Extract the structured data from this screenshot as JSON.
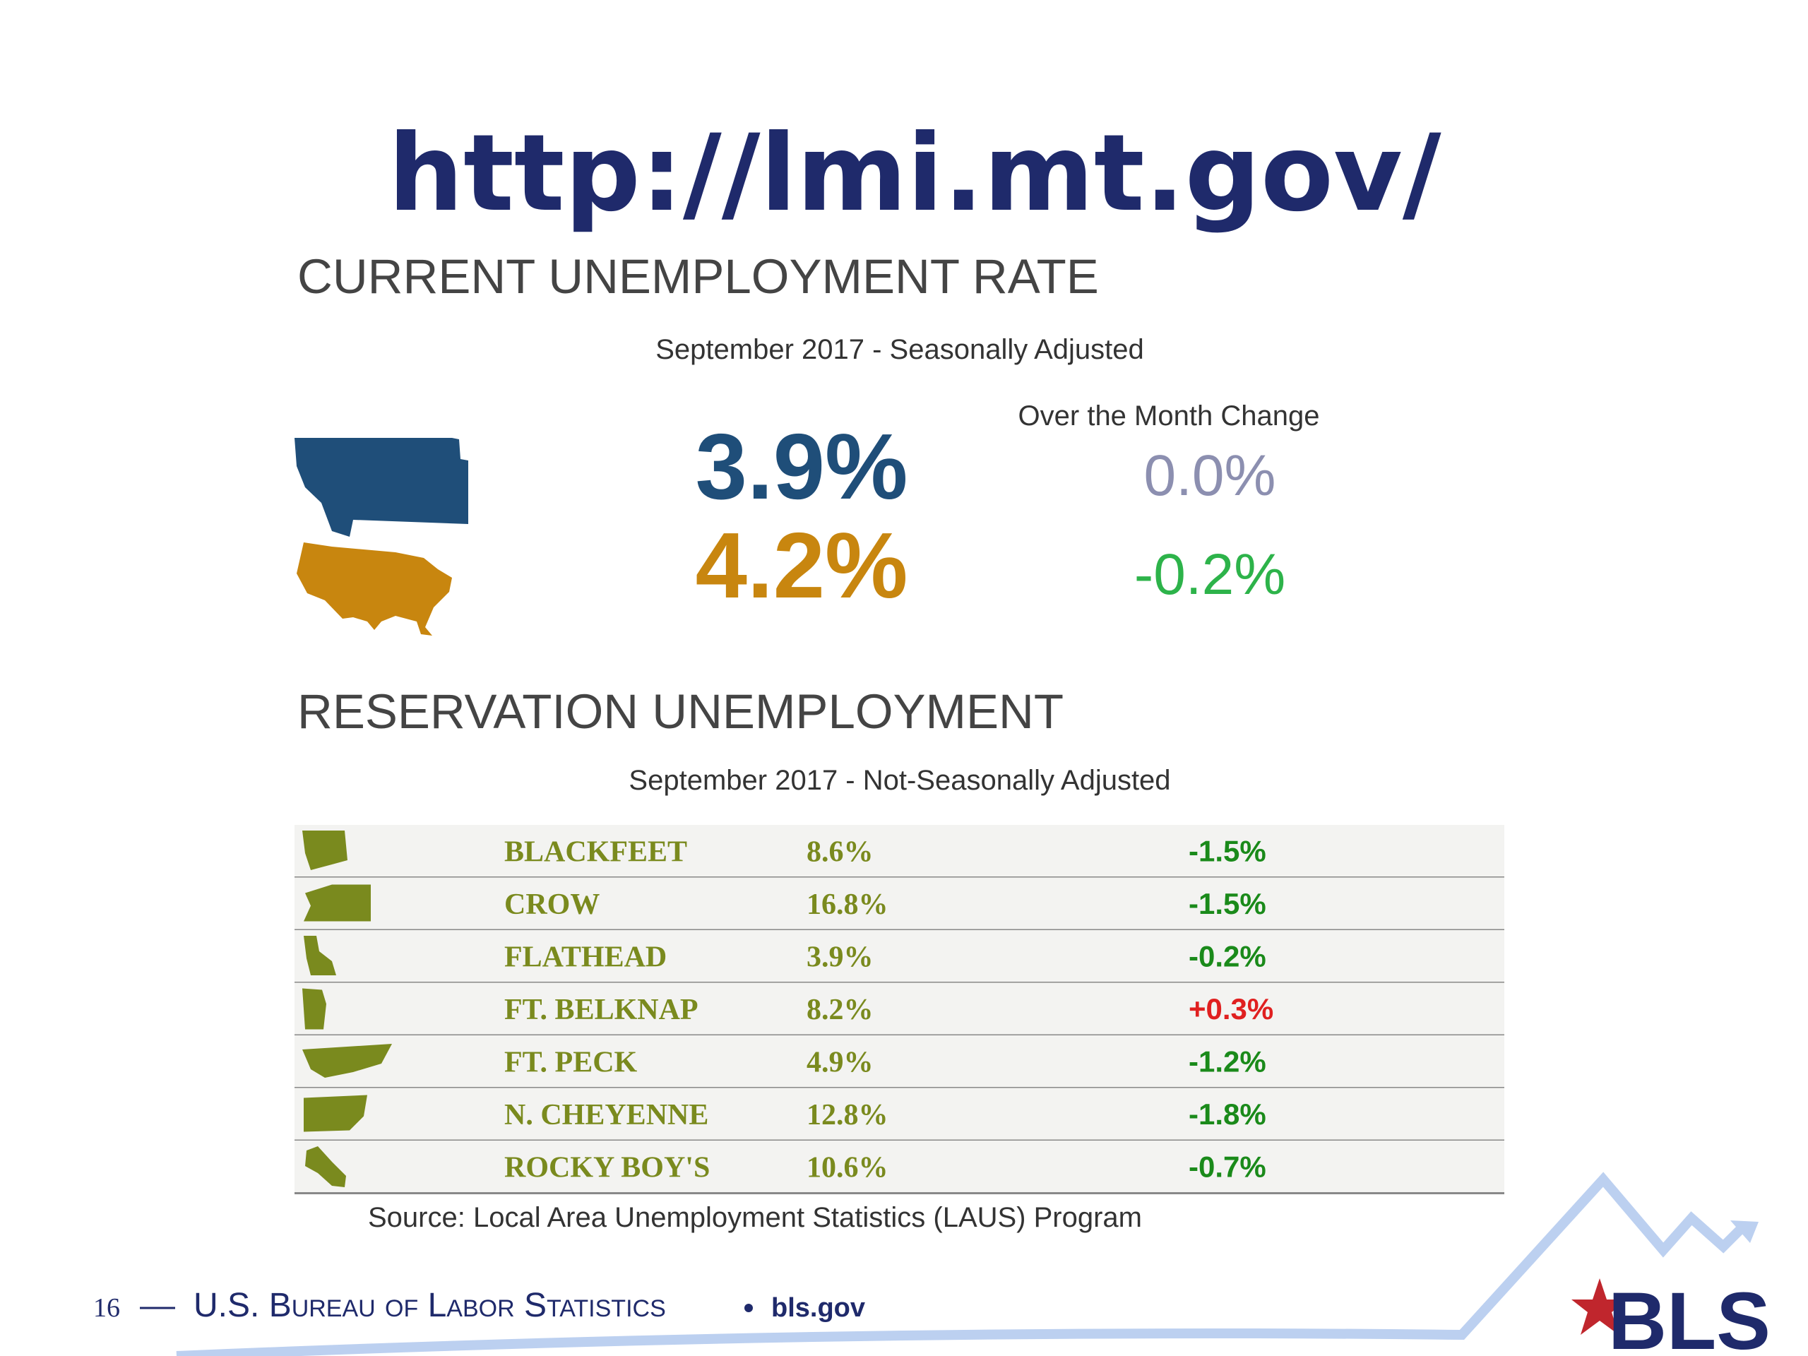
{
  "url": "http://lmi.mt.gov/",
  "current": {
    "title": "CURRENT UNEMPLOYMENT RATE",
    "subtitle": "September 2017 - Seasonally Adjusted",
    "change_header": "Over the Month Change",
    "rows": [
      {
        "rate": "3.9%",
        "change": "0.0%"
      },
      {
        "rate": "4.2%",
        "change": "-0.2%"
      }
    ]
  },
  "reservation": {
    "title": "RESERVATION UNEMPLOYMENT",
    "subtitle": "September 2017 - Not-Seasonally Adjusted",
    "rows": [
      [
        "BLACKFEET",
        "8.6%",
        "-1.5%"
      ],
      [
        "CROW",
        "16.8%",
        "-1.5%"
      ],
      [
        "FLATHEAD",
        "3.9%",
        "-0.2%"
      ],
      [
        "FT. BELKNAP",
        "8.2%",
        "+0.3%"
      ],
      [
        "FT. PECK",
        "4.9%",
        "-1.2%"
      ],
      [
        "N. CHEYENNE",
        "12.8%",
        "-1.8%"
      ],
      [
        "ROCKY BOY'S",
        "10.6%",
        "-0.7%"
      ]
    ]
  },
  "source": "Source: Local Area Unemployment Statistics (LAUS) Program",
  "footer": {
    "page": "16",
    "org": "U.S. Bureau of Labor Statistics",
    "site": "bls.gov",
    "logo": "BLS"
  }
}
